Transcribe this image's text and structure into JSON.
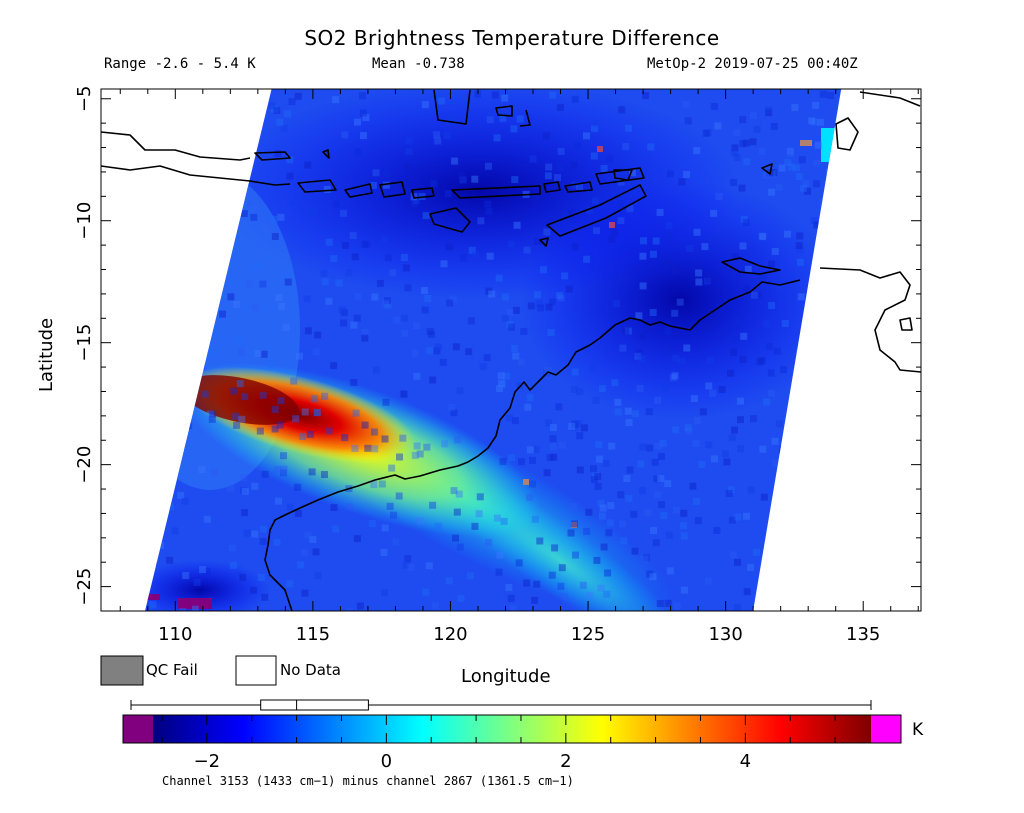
{
  "chart_data": {
    "type": "heatmap",
    "title": "SO2 Brightness Temperature Difference",
    "header": {
      "range": "Range -2.6 - 5.4 K",
      "mean": "Mean -0.738",
      "source": "MetOp-2 2019-07-25 00:40Z"
    },
    "xlabel": "Longitude",
    "ylabel": "Latitude",
    "xlim": [
      107.3,
      137.1
    ],
    "ylim": [
      -26,
      -4.6
    ],
    "xticks": [
      110,
      115,
      120,
      125,
      130,
      135
    ],
    "yticks": [
      -5,
      -10,
      -15,
      -20,
      -25
    ],
    "xtick_labels": [
      "110",
      "115",
      "120",
      "125",
      "130",
      "135"
    ],
    "ytick_labels": [
      "−5",
      "−10",
      "−15",
      "−20",
      "−25"
    ],
    "swath_corners": [
      [
        108.9,
        -26.0
      ],
      [
        113.5,
        -4.6
      ],
      [
        134.2,
        -4.6
      ],
      [
        131.0,
        -26.0
      ]
    ],
    "plume": {
      "description_from_values": "high values near 111.5E -17.5S decreasing eastward",
      "peak_value_K": 5.4,
      "location": [
        112,
        -17.6
      ]
    },
    "value_scale": {
      "min": -2.6,
      "max": 5.4,
      "unit": "K",
      "tick_values": [
        -2,
        0,
        2,
        4
      ],
      "tick_labels": [
        "−2",
        "0",
        "2",
        "4"
      ],
      "colors": [
        "#00007f",
        "#0000ff",
        "#007fff",
        "#00ffff",
        "#7fff7f",
        "#ffff00",
        "#ff7f00",
        "#ff0000",
        "#7f0000"
      ],
      "under_color": "#800080",
      "over_color": "#ff00ff",
      "boxplot": {
        "min": -2.6,
        "q1": -1.4,
        "median": -1.0,
        "q3": -0.2,
        "max": 5.4
      }
    },
    "legend": {
      "qc_fail_label": "QC Fail",
      "qc_fail_color": "#808080",
      "no_data_label": "No Data",
      "no_data_color": "#ffffff"
    },
    "channel_note": "Channel 3153 (1433 cm−1) minus channel 2867 (1361.5 cm−1)",
    "grid": false
  }
}
